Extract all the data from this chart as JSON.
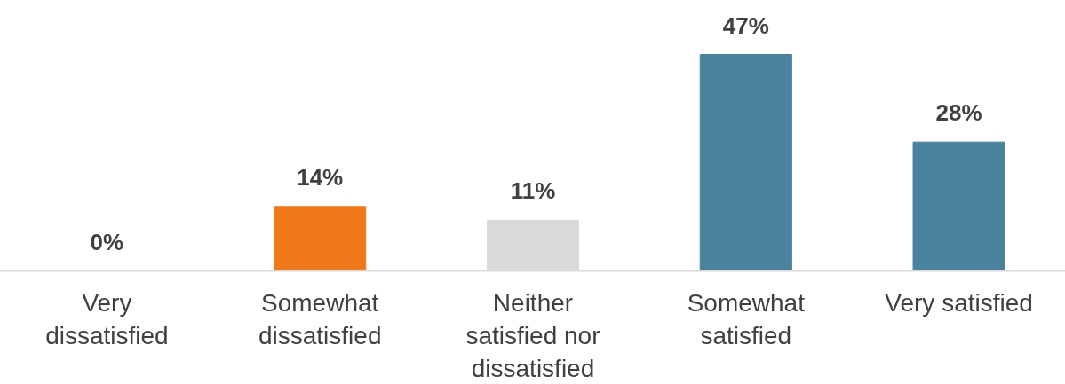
{
  "chart_data": {
    "type": "bar",
    "categories": [
      "Very dissatisfied",
      "Somewhat dissatisfied",
      "Neither satisfied nor dissatisfied",
      "Somewhat satisfied",
      "Very satisfied"
    ],
    "values": [
      0,
      14,
      11,
      47,
      28
    ],
    "colors": [
      "#4a819c",
      "#f07818",
      "#d9d9d9",
      "#4a819c",
      "#4a819c"
    ],
    "value_labels": [
      "0%",
      "14%",
      "11%",
      "47%",
      "28%"
    ],
    "grid": false
  }
}
